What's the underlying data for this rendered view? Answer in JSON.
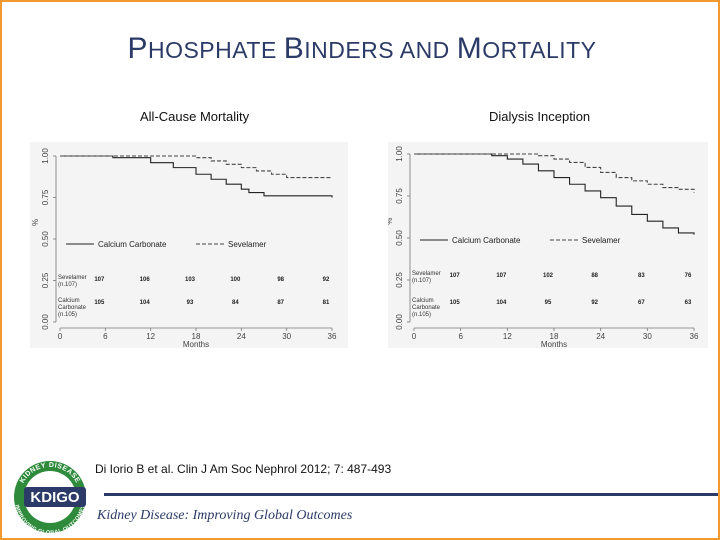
{
  "slide": {
    "title_parts": [
      {
        "lead": "P",
        "rest": "HOSPHATE "
      },
      {
        "lead": "B",
        "rest": "INDERS AND "
      },
      {
        "lead": "M",
        "rest": "ORTALITY"
      }
    ],
    "citation": "Di Iorio B et al. Clin J Am Soc Nephrol 2012; 7: 487-493",
    "footer": "Kidney Disease: Improving Global Outcomes",
    "colors": {
      "accent_border": "#f29a2e",
      "title": "#2b3a67",
      "logo_green": "#2e8b3c",
      "logo_blue": "#2b3a67"
    }
  },
  "logo": {
    "wordmark": "KDIGO",
    "ring_top": "KIDNEY DISEASE",
    "ring_bottom": "IMPROVING GLOBAL OUTCOMES"
  },
  "chart_data": [
    {
      "type": "line",
      "title": "All-Cause Mortality",
      "xlabel": "Months",
      "ylabel": "%",
      "x_ticks": [
        0,
        6,
        12,
        18,
        24,
        30,
        36
      ],
      "y_ticks": [
        "0.00",
        "0.25",
        "0.50",
        "0.75",
        "1.00"
      ],
      "xlim": [
        0,
        36
      ],
      "ylim": [
        0,
        1
      ],
      "legend": [
        "Calcium Carbonate",
        "Sevelamer"
      ],
      "series": [
        {
          "name": "Calcium Carbonate",
          "style": "solid",
          "x": [
            0,
            7,
            12,
            15,
            18,
            20,
            22,
            24,
            25,
            27,
            36
          ],
          "y": [
            1.0,
            0.99,
            0.96,
            0.93,
            0.89,
            0.86,
            0.83,
            0.8,
            0.78,
            0.76,
            0.75
          ]
        },
        {
          "name": "Sevelamer",
          "style": "dashed",
          "x": [
            0,
            12,
            18,
            20,
            22,
            24,
            26,
            28,
            30,
            36
          ],
          "y": [
            1.0,
            1.0,
            0.99,
            0.97,
            0.95,
            0.93,
            0.91,
            0.89,
            0.87,
            0.87
          ]
        }
      ],
      "at_risk": [
        {
          "label": "Sevelamer",
          "sub": "(n.107)",
          "values": [
            "107",
            "106",
            "103",
            "100",
            "98",
            "92"
          ]
        },
        {
          "label": "Calcium Carbonate",
          "sub": "(n.105)",
          "values": [
            "105",
            "104",
            "93",
            "84",
            "87",
            "81"
          ]
        }
      ]
    },
    {
      "type": "line",
      "title": "Dialysis Inception",
      "xlabel": "Months",
      "ylabel": "%",
      "x_ticks": [
        0,
        6,
        12,
        18,
        24,
        30,
        36
      ],
      "y_ticks": [
        "0.00",
        "0.25",
        "0.50",
        "0.75",
        "1.00"
      ],
      "xlim": [
        0,
        36
      ],
      "ylim": [
        0,
        1
      ],
      "legend": [
        "Calcium Carbonate",
        "Sevelamer"
      ],
      "series": [
        {
          "name": "Calcium Carbonate",
          "style": "solid",
          "x": [
            0,
            10,
            12,
            14,
            16,
            18,
            20,
            22,
            24,
            26,
            28,
            30,
            32,
            34,
            36
          ],
          "y": [
            1.0,
            0.99,
            0.97,
            0.94,
            0.9,
            0.86,
            0.82,
            0.78,
            0.74,
            0.69,
            0.64,
            0.6,
            0.56,
            0.53,
            0.52
          ]
        },
        {
          "name": "Sevelamer",
          "style": "dashed",
          "x": [
            0,
            12,
            16,
            18,
            20,
            22,
            24,
            26,
            28,
            30,
            32,
            34,
            36
          ],
          "y": [
            1.0,
            1.0,
            0.99,
            0.97,
            0.95,
            0.92,
            0.89,
            0.86,
            0.84,
            0.82,
            0.8,
            0.79,
            0.77
          ]
        }
      ],
      "at_risk": [
        {
          "label": "Sevelamer",
          "sub": "(n.107)",
          "values": [
            "107",
            "107",
            "102",
            "88",
            "83",
            "76"
          ]
        },
        {
          "label": "Calcium Carbonate",
          "sub": "(n.105)",
          "values": [
            "105",
            "104",
            "95",
            "92",
            "67",
            "63"
          ]
        }
      ]
    }
  ]
}
